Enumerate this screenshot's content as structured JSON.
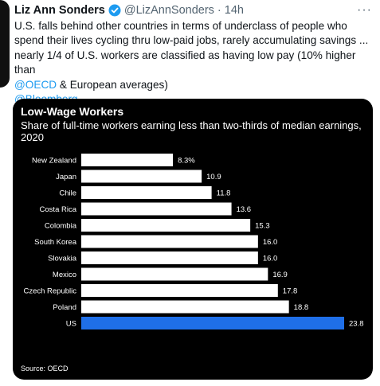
{
  "tweet": {
    "author_name": "Liz Ann Sonders",
    "handle": "@LizAnnSonders",
    "separator": "·",
    "time": "14h",
    "more": "···",
    "text_line1": "U.S. falls behind other countries in terms of underclass of people who",
    "text_line2": "spend their lives cycling thru low-paid jobs, rarely accumulating savings ...",
    "text_line3": "nearly 1/4 of U.S. workers are classified as having low pay (10% higher than",
    "mention_oecd": "@OECD",
    "text_line4_rest": " & European averages)",
    "mention_bloomberg": "@Bloomberg"
  },
  "colors": {
    "bar": "#ffffff",
    "highlight": "#1f6fe8",
    "card_bg": "#000000",
    "link": "#1d9bf0",
    "verified": "#1d9bf0"
  },
  "chart_data": {
    "type": "bar",
    "orientation": "horizontal",
    "title": "Low-Wage Workers",
    "subtitle": "Share of full-time workers earning less than two-thirds of median earnings, 2020",
    "source": "Source: OECD",
    "categories": [
      "New Zealand",
      "Japan",
      "Chile",
      "Costa Rica",
      "Colombia",
      "South Korea",
      "Slovakia",
      "Mexico",
      "Czech Republic",
      "Poland",
      "US"
    ],
    "values": [
      8.3,
      10.9,
      11.8,
      13.6,
      15.3,
      16.0,
      16.0,
      16.9,
      17.8,
      18.8,
      23.8
    ],
    "value_labels": [
      "8.3%",
      "10.9",
      "11.8",
      "13.6",
      "15.3",
      "16.0",
      "16.0",
      "16.9",
      "17.8",
      "18.8",
      "23.8"
    ],
    "highlight": "US",
    "xlim": [
      0,
      23.8
    ],
    "grid": false,
    "legend": "none"
  }
}
